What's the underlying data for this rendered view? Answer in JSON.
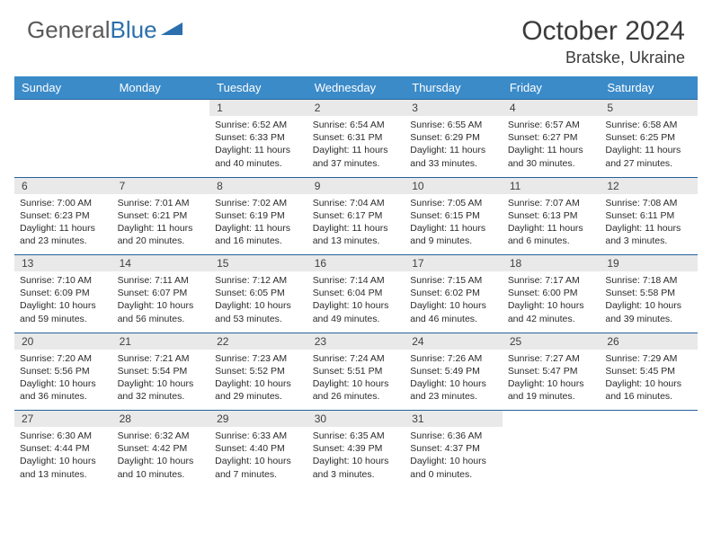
{
  "logo": {
    "text1": "General",
    "text2": "Blue"
  },
  "title": "October 2024",
  "location": "Bratske, Ukraine",
  "colors": {
    "header_bg": "#3b8bc9",
    "header_text": "#ffffff",
    "daynum_bg": "#e9e9e9",
    "border": "#25629b",
    "text": "#2b2b2b",
    "logo_gray": "#5a5a5a",
    "logo_blue": "#2b6fad"
  },
  "day_headers": [
    "Sunday",
    "Monday",
    "Tuesday",
    "Wednesday",
    "Thursday",
    "Friday",
    "Saturday"
  ],
  "weeks": [
    [
      null,
      null,
      {
        "n": "1",
        "sr": "Sunrise: 6:52 AM",
        "ss": "Sunset: 6:33 PM",
        "dl": "Daylight: 11 hours and 40 minutes."
      },
      {
        "n": "2",
        "sr": "Sunrise: 6:54 AM",
        "ss": "Sunset: 6:31 PM",
        "dl": "Daylight: 11 hours and 37 minutes."
      },
      {
        "n": "3",
        "sr": "Sunrise: 6:55 AM",
        "ss": "Sunset: 6:29 PM",
        "dl": "Daylight: 11 hours and 33 minutes."
      },
      {
        "n": "4",
        "sr": "Sunrise: 6:57 AM",
        "ss": "Sunset: 6:27 PM",
        "dl": "Daylight: 11 hours and 30 minutes."
      },
      {
        "n": "5",
        "sr": "Sunrise: 6:58 AM",
        "ss": "Sunset: 6:25 PM",
        "dl": "Daylight: 11 hours and 27 minutes."
      }
    ],
    [
      {
        "n": "6",
        "sr": "Sunrise: 7:00 AM",
        "ss": "Sunset: 6:23 PM",
        "dl": "Daylight: 11 hours and 23 minutes."
      },
      {
        "n": "7",
        "sr": "Sunrise: 7:01 AM",
        "ss": "Sunset: 6:21 PM",
        "dl": "Daylight: 11 hours and 20 minutes."
      },
      {
        "n": "8",
        "sr": "Sunrise: 7:02 AM",
        "ss": "Sunset: 6:19 PM",
        "dl": "Daylight: 11 hours and 16 minutes."
      },
      {
        "n": "9",
        "sr": "Sunrise: 7:04 AM",
        "ss": "Sunset: 6:17 PM",
        "dl": "Daylight: 11 hours and 13 minutes."
      },
      {
        "n": "10",
        "sr": "Sunrise: 7:05 AM",
        "ss": "Sunset: 6:15 PM",
        "dl": "Daylight: 11 hours and 9 minutes."
      },
      {
        "n": "11",
        "sr": "Sunrise: 7:07 AM",
        "ss": "Sunset: 6:13 PM",
        "dl": "Daylight: 11 hours and 6 minutes."
      },
      {
        "n": "12",
        "sr": "Sunrise: 7:08 AM",
        "ss": "Sunset: 6:11 PM",
        "dl": "Daylight: 11 hours and 3 minutes."
      }
    ],
    [
      {
        "n": "13",
        "sr": "Sunrise: 7:10 AM",
        "ss": "Sunset: 6:09 PM",
        "dl": "Daylight: 10 hours and 59 minutes."
      },
      {
        "n": "14",
        "sr": "Sunrise: 7:11 AM",
        "ss": "Sunset: 6:07 PM",
        "dl": "Daylight: 10 hours and 56 minutes."
      },
      {
        "n": "15",
        "sr": "Sunrise: 7:12 AM",
        "ss": "Sunset: 6:05 PM",
        "dl": "Daylight: 10 hours and 53 minutes."
      },
      {
        "n": "16",
        "sr": "Sunrise: 7:14 AM",
        "ss": "Sunset: 6:04 PM",
        "dl": "Daylight: 10 hours and 49 minutes."
      },
      {
        "n": "17",
        "sr": "Sunrise: 7:15 AM",
        "ss": "Sunset: 6:02 PM",
        "dl": "Daylight: 10 hours and 46 minutes."
      },
      {
        "n": "18",
        "sr": "Sunrise: 7:17 AM",
        "ss": "Sunset: 6:00 PM",
        "dl": "Daylight: 10 hours and 42 minutes."
      },
      {
        "n": "19",
        "sr": "Sunrise: 7:18 AM",
        "ss": "Sunset: 5:58 PM",
        "dl": "Daylight: 10 hours and 39 minutes."
      }
    ],
    [
      {
        "n": "20",
        "sr": "Sunrise: 7:20 AM",
        "ss": "Sunset: 5:56 PM",
        "dl": "Daylight: 10 hours and 36 minutes."
      },
      {
        "n": "21",
        "sr": "Sunrise: 7:21 AM",
        "ss": "Sunset: 5:54 PM",
        "dl": "Daylight: 10 hours and 32 minutes."
      },
      {
        "n": "22",
        "sr": "Sunrise: 7:23 AM",
        "ss": "Sunset: 5:52 PM",
        "dl": "Daylight: 10 hours and 29 minutes."
      },
      {
        "n": "23",
        "sr": "Sunrise: 7:24 AM",
        "ss": "Sunset: 5:51 PM",
        "dl": "Daylight: 10 hours and 26 minutes."
      },
      {
        "n": "24",
        "sr": "Sunrise: 7:26 AM",
        "ss": "Sunset: 5:49 PM",
        "dl": "Daylight: 10 hours and 23 minutes."
      },
      {
        "n": "25",
        "sr": "Sunrise: 7:27 AM",
        "ss": "Sunset: 5:47 PM",
        "dl": "Daylight: 10 hours and 19 minutes."
      },
      {
        "n": "26",
        "sr": "Sunrise: 7:29 AM",
        "ss": "Sunset: 5:45 PM",
        "dl": "Daylight: 10 hours and 16 minutes."
      }
    ],
    [
      {
        "n": "27",
        "sr": "Sunrise: 6:30 AM",
        "ss": "Sunset: 4:44 PM",
        "dl": "Daylight: 10 hours and 13 minutes."
      },
      {
        "n": "28",
        "sr": "Sunrise: 6:32 AM",
        "ss": "Sunset: 4:42 PM",
        "dl": "Daylight: 10 hours and 10 minutes."
      },
      {
        "n": "29",
        "sr": "Sunrise: 6:33 AM",
        "ss": "Sunset: 4:40 PM",
        "dl": "Daylight: 10 hours and 7 minutes."
      },
      {
        "n": "30",
        "sr": "Sunrise: 6:35 AM",
        "ss": "Sunset: 4:39 PM",
        "dl": "Daylight: 10 hours and 3 minutes."
      },
      {
        "n": "31",
        "sr": "Sunrise: 6:36 AM",
        "ss": "Sunset: 4:37 PM",
        "dl": "Daylight: 10 hours and 0 minutes."
      },
      null,
      null
    ]
  ]
}
